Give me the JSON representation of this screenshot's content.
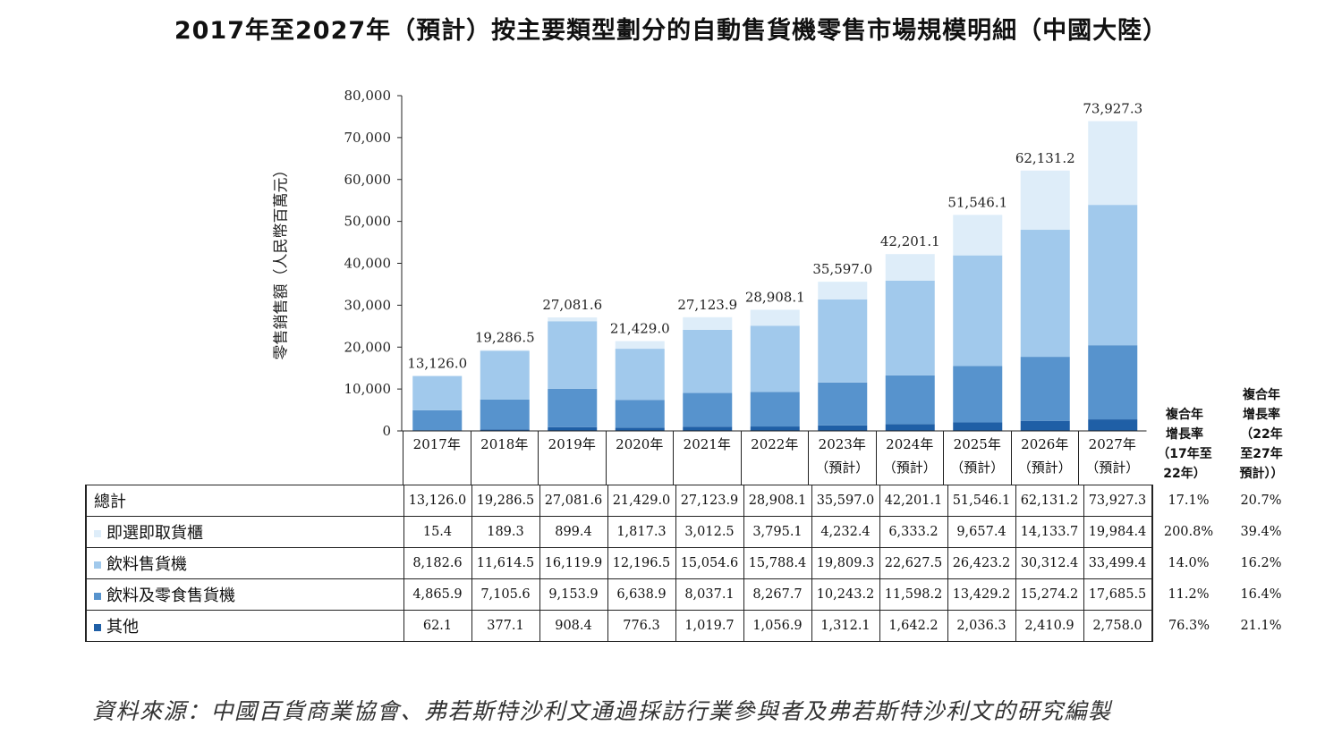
{
  "title": "2017年至2027年（預計）按主要類型劃分的自動售貨機零售市場規模明細（中國大陸）",
  "source": "資料來源：中國百貨商業協會、弗若斯特沙利文通過採訪行業參與者及弗若斯特沙利文的研究編製",
  "cagr_headers": {
    "h1": [
      "複合年",
      "增長率",
      "（17年至",
      "22年）"
    ],
    "h2": [
      "複合年",
      "增長率",
      "（22年",
      "至27年",
      "預計））"
    ]
  },
  "chart_data": {
    "type": "bar",
    "stacked": true,
    "ylabel": "零售銷售額（人民幣百萬元）",
    "ylim": [
      0,
      80000
    ],
    "yticks": [
      0,
      10000,
      20000,
      30000,
      40000,
      50000,
      60000,
      70000,
      80000
    ],
    "ytick_labels": [
      "0",
      "10,000",
      "20,000",
      "30,000",
      "40,000",
      "50,000",
      "60,000",
      "70,000",
      "80,000"
    ],
    "categories": [
      {
        "year": "2017年",
        "sub": ""
      },
      {
        "year": "2018年",
        "sub": ""
      },
      {
        "year": "2019年",
        "sub": ""
      },
      {
        "year": "2020年",
        "sub": ""
      },
      {
        "year": "2021年",
        "sub": ""
      },
      {
        "year": "2022年",
        "sub": ""
      },
      {
        "year": "2023年",
        "sub": "（預計）"
      },
      {
        "year": "2024年",
        "sub": "（預計）"
      },
      {
        "year": "2025年",
        "sub": "（預計）"
      },
      {
        "year": "2026年",
        "sub": "（預計）"
      },
      {
        "year": "2027年",
        "sub": "（預計）"
      }
    ],
    "totals": [
      13126.0,
      19286.5,
      27081.6,
      21429.0,
      27123.9,
      28908.1,
      35597.0,
      42201.1,
      51546.1,
      62131.2,
      73927.3
    ],
    "total_labels": [
      "13,126.0",
      "19,286.5",
      "27,081.6",
      "21,429.0",
      "27,123.9",
      "28,908.1",
      "35,597.0",
      "42,201.1",
      "51,546.1",
      "62,131.2",
      "73,927.3"
    ],
    "total_row": {
      "name": "總計",
      "labels": [
        "13,126.0",
        "19,286.5",
        "27,081.6",
        "21,429.0",
        "27,123.9",
        "28,908.1",
        "35,597.0",
        "42,201.1",
        "51,546.1",
        "62,131.2",
        "73,927.3"
      ],
      "cagr1": "17.1%",
      "cagr2": "20.7%"
    },
    "series": [
      {
        "name": "即選即取貨櫃",
        "color": "#deedf9",
        "values": [
          15.4,
          189.3,
          899.4,
          1817.3,
          3012.5,
          3795.1,
          4232.4,
          6333.2,
          9657.4,
          14133.7,
          19984.4
        ],
        "labels": [
          "15.4",
          "189.3",
          "899.4",
          "1,817.3",
          "3,012.5",
          "3,795.1",
          "4,232.4",
          "6,333.2",
          "9,657.4",
          "14,133.7",
          "19,984.4"
        ],
        "cagr1": "200.8%",
        "cagr2": "39.4%"
      },
      {
        "name": "飲料售貨機",
        "color": "#a1c9ec",
        "values": [
          8182.6,
          11614.5,
          16119.9,
          12196.5,
          15054.6,
          15788.4,
          19809.3,
          22627.5,
          26423.2,
          30312.4,
          33499.4
        ],
        "labels": [
          "8,182.6",
          "11,614.5",
          "16,119.9",
          "12,196.5",
          "15,054.6",
          "15,788.4",
          "19,809.3",
          "22,627.5",
          "26,423.2",
          "30,312.4",
          "33,499.4"
        ],
        "cagr1": "14.0%",
        "cagr2": "16.2%"
      },
      {
        "name": "飲料及零食售貨機",
        "color": "#5793cd",
        "values": [
          4865.9,
          7105.6,
          9153.9,
          6638.9,
          8037.1,
          8267.7,
          10243.2,
          11598.2,
          13429.2,
          15274.2,
          17685.5
        ],
        "labels": [
          "4,865.9",
          "7,105.6",
          "9,153.9",
          "6,638.9",
          "8,037.1",
          "8,267.7",
          "10,243.2",
          "11,598.2",
          "13,429.2",
          "15,274.2",
          "17,685.5"
        ],
        "cagr1": "11.2%",
        "cagr2": "16.4%"
      },
      {
        "name": "其他",
        "color": "#1f5fa6",
        "values": [
          62.1,
          377.1,
          908.4,
          776.3,
          1019.7,
          1056.9,
          1312.1,
          1642.2,
          2036.3,
          2410.9,
          2758.0
        ],
        "labels": [
          "62.1",
          "377.1",
          "908.4",
          "776.3",
          "1,019.7",
          "1,056.9",
          "1,312.1",
          "1,642.2",
          "2,036.3",
          "2,410.9",
          "2,758.0"
        ],
        "cagr1": "76.3%",
        "cagr2": "21.1%"
      }
    ]
  }
}
